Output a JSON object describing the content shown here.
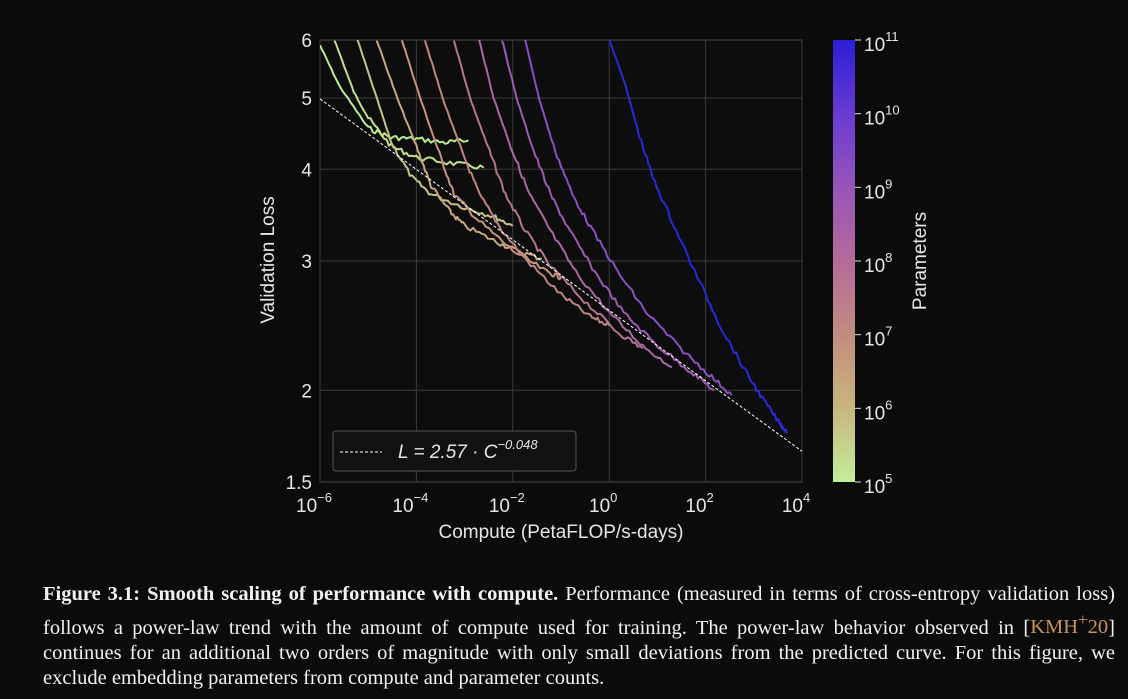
{
  "chart_data": {
    "type": "line",
    "xlabel": "Compute (PetaFLOP/s-days)",
    "ylabel": "Validation Loss",
    "xscale": "log",
    "yscale": "log",
    "xlim": [
      1e-06,
      10000.0
    ],
    "ylim": [
      1.5,
      6
    ],
    "x_ticks": [
      {
        "base": "10",
        "exp": "−6"
      },
      {
        "base": "10",
        "exp": "−4"
      },
      {
        "base": "10",
        "exp": "−2"
      },
      {
        "base": "10",
        "exp": "0"
      },
      {
        "base": "10",
        "exp": "2"
      },
      {
        "base": "10",
        "exp": "4"
      }
    ],
    "y_ticks": [
      "1.5",
      "2",
      "3",
      "4",
      "5",
      "6"
    ],
    "grid": true,
    "legend_placement": "lower-left",
    "fit": {
      "a": 2.57,
      "b": -0.048,
      "label_main": "L = 2.57 · C",
      "label_exp": "−0.048",
      "color": "#ffffff"
    },
    "colorbar": {
      "label": "Parameters",
      "scale": "log",
      "range": [
        100000.0,
        100000000000.0
      ],
      "ticks": [
        {
          "base": "10",
          "exp": "11"
        },
        {
          "base": "10",
          "exp": "10"
        },
        {
          "base": "10",
          "exp": "9"
        },
        {
          "base": "10",
          "exp": "8"
        },
        {
          "base": "10",
          "exp": "7"
        },
        {
          "base": "10",
          "exp": "6"
        },
        {
          "base": "10",
          "exp": "5"
        }
      ],
      "colors": [
        "#c2ed9a",
        "#c9b57e",
        "#c18d7e",
        "#b46a99",
        "#9654b8",
        "#6a3bd2",
        "#2a1fd6"
      ]
    },
    "series": [
      {
        "params": 100000.0,
        "color": "#b9eb95",
        "points": [
          [
            1e-06,
            5.9
          ],
          [
            2.5e-06,
            5.2
          ],
          [
            1e-05,
            4.55
          ],
          [
            3e-05,
            4.42
          ],
          [
            0.0001,
            4.4
          ],
          [
            0.0004,
            4.35
          ],
          [
            0.0012,
            4.38
          ]
        ]
      },
      {
        "params": 300000.0,
        "color": "#c1df8c",
        "points": [
          [
            2e-06,
            6.0
          ],
          [
            5e-06,
            5.1
          ],
          [
            1e-05,
            4.7
          ],
          [
            3e-05,
            4.3
          ],
          [
            0.0001,
            4.15
          ],
          [
            0.0005,
            4.08
          ],
          [
            0.0025,
            4.02
          ]
        ]
      },
      {
        "params": 1000000.0,
        "color": "#c6c386",
        "points": [
          [
            6e-06,
            6.0
          ],
          [
            1.5e-05,
            5.0
          ],
          [
            3e-05,
            4.35
          ],
          [
            8e-05,
            3.9
          ],
          [
            0.0002,
            3.7
          ],
          [
            0.001,
            3.55
          ],
          [
            0.004,
            3.45
          ],
          [
            0.01,
            3.35
          ]
        ]
      },
      {
        "params": 3000000.0,
        "color": "#c8a880",
        "points": [
          [
            1.5e-05,
            6.0
          ],
          [
            4e-05,
            5.0
          ],
          [
            0.0001,
            4.3
          ],
          [
            0.0002,
            3.8
          ],
          [
            0.0005,
            3.5
          ],
          [
            0.001,
            3.35
          ],
          [
            0.004,
            3.2
          ],
          [
            0.012,
            3.1
          ],
          [
            0.04,
            3.02
          ]
        ]
      },
      {
        "params": 10000000.0,
        "color": "#c4947f",
        "points": [
          [
            5e-05,
            6.0
          ],
          [
            0.00012,
            5.0
          ],
          [
            0.0003,
            4.2
          ],
          [
            0.0006,
            3.7
          ],
          [
            0.002,
            3.4
          ],
          [
            0.01,
            3.1
          ],
          [
            0.05,
            2.9
          ],
          [
            0.1,
            2.85
          ]
        ]
      },
      {
        "params": 30000000.0,
        "color": "#bd8482",
        "points": [
          [
            0.00015,
            6.0
          ],
          [
            0.00035,
            5.0
          ],
          [
            0.0008,
            4.3
          ],
          [
            0.002,
            3.7
          ],
          [
            0.006,
            3.3
          ],
          [
            0.02,
            3.0
          ],
          [
            0.1,
            2.7
          ],
          [
            0.4,
            2.52
          ],
          [
            1,
            2.45
          ]
        ]
      },
      {
        "params": 100000000.0,
        "color": "#b47590",
        "points": [
          [
            0.0006,
            6.0
          ],
          [
            0.0013,
            5.0
          ],
          [
            0.003,
            4.3
          ],
          [
            0.007,
            3.7
          ],
          [
            0.018,
            3.3
          ],
          [
            0.06,
            2.95
          ],
          [
            0.3,
            2.65
          ],
          [
            1.5,
            2.4
          ],
          [
            5,
            2.28
          ]
        ]
      },
      {
        "params": 300000000.0,
        "color": "#a968a2",
        "points": [
          [
            0.002,
            6.0
          ],
          [
            0.004,
            5.0
          ],
          [
            0.009,
            4.3
          ],
          [
            0.022,
            3.7
          ],
          [
            0.06,
            3.3
          ],
          [
            0.2,
            2.9
          ],
          [
            1,
            2.55
          ],
          [
            5,
            2.3
          ],
          [
            20,
            2.15
          ]
        ]
      },
      {
        "params": 1000000000.0,
        "color": "#9b5bb4",
        "points": [
          [
            0.006,
            6.0
          ],
          [
            0.012,
            5.0
          ],
          [
            0.025,
            4.3
          ],
          [
            0.06,
            3.7
          ],
          [
            0.15,
            3.3
          ],
          [
            0.5,
            2.9
          ],
          [
            2,
            2.55
          ],
          [
            10,
            2.3
          ],
          [
            50,
            2.12
          ],
          [
            150,
            2.0
          ]
        ]
      },
      {
        "params": 3000000000.0,
        "color": "#8a4fc3",
        "points": [
          [
            0.018,
            6.0
          ],
          [
            0.035,
            5.0
          ],
          [
            0.07,
            4.3
          ],
          [
            0.17,
            3.7
          ],
          [
            0.45,
            3.3
          ],
          [
            1.5,
            2.9
          ],
          [
            6,
            2.55
          ],
          [
            30,
            2.28
          ],
          [
            120,
            2.1
          ],
          [
            350,
            1.97
          ]
        ]
      },
      {
        "params": 100000000000.0,
        "color": "#2b28d8",
        "points": [
          [
            1.0,
            6.0
          ],
          [
            2,
            5.3
          ],
          [
            4,
            4.5
          ],
          [
            8,
            3.9
          ],
          [
            20,
            3.4
          ],
          [
            60,
            2.9
          ],
          [
            200,
            2.45
          ],
          [
            600,
            2.15
          ],
          [
            1500,
            1.95
          ],
          [
            3500,
            1.8
          ],
          [
            5000,
            1.75
          ]
        ]
      }
    ]
  },
  "caption": {
    "label": "Figure 3.1:",
    "title": "Smooth scaling of performance with compute.",
    "text_before": "Performance (measured in terms of cross-entropy validation loss) follows a power-law trend with the amount of compute used for training. The power-law behavior observed in [",
    "cite_main": "KMH",
    "cite_sup": "+",
    "cite_end": "20",
    "text_after": "] continues for an additional two orders of magnitude with only small deviations from the predicted curve. For this figure, we exclude embedding parameters from compute and parameter counts."
  }
}
